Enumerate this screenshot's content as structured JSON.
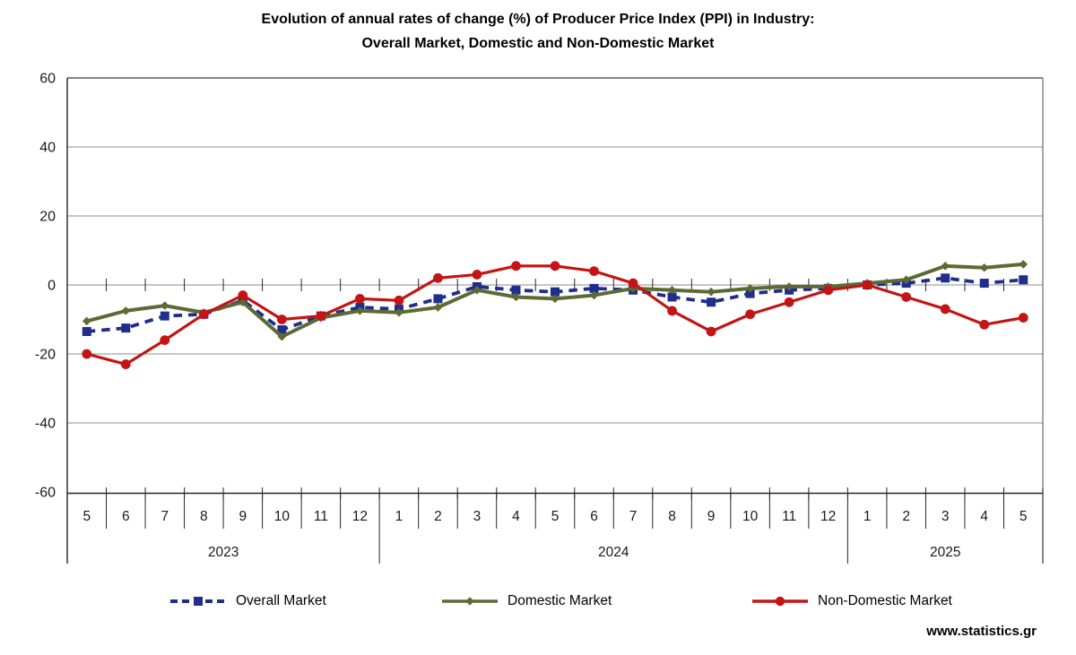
{
  "title": {
    "line1": "Evolution of annual rates of change (%) of Producer Price Index (PPI) in Industry:",
    "line2": "Overall Market, Domestic and Non-Domestic Market"
  },
  "watermark": "www.statistics.gr",
  "colors": {
    "grid": "#8c8c8c",
    "axis": "#262626",
    "plot_border_top": "#595959",
    "plot_border_right": "#6e6e6e",
    "label_text": "#1a1a1a",
    "overall": "#1f2d8c",
    "domestic": "#5b6b33",
    "non_domestic": "#c41414"
  },
  "chart_data": {
    "type": "line",
    "title": "Evolution of annual rates of change (%) of Producer Price Index (PPI) in Industry: Overall Market, Domestic and Non-Domestic Market",
    "xlabel": "",
    "ylabel": "",
    "ylim": [
      -60,
      60
    ],
    "yticks": [
      60,
      40,
      20,
      0,
      -20,
      -40,
      -60
    ],
    "grid": "horizontal",
    "legend_position": "bottom",
    "categories": [
      "2023-05",
      "2023-06",
      "2023-07",
      "2023-08",
      "2023-09",
      "2023-10",
      "2023-11",
      "2023-12",
      "2024-01",
      "2024-02",
      "2024-03",
      "2024-04",
      "2024-05",
      "2024-06",
      "2024-07",
      "2024-08",
      "2024-09",
      "2024-10",
      "2024-11",
      "2024-12",
      "2025-01",
      "2025-02",
      "2025-03",
      "2025-04",
      "2025-05"
    ],
    "month_labels": [
      "5",
      "6",
      "7",
      "8",
      "9",
      "10",
      "11",
      "12",
      "1",
      "2",
      "3",
      "4",
      "5",
      "6",
      "7",
      "8",
      "9",
      "10",
      "11",
      "12",
      "1",
      "2",
      "3",
      "4",
      "5"
    ],
    "year_groups": [
      {
        "label": "2023",
        "months": 8
      },
      {
        "label": "2024",
        "months": 12
      },
      {
        "label": "2025",
        "months": 5
      }
    ],
    "series": [
      {
        "name": "Overall Market",
        "color": "#1f2d8c",
        "line_style": "dashed",
        "marker": "square",
        "values": [
          -13.5,
          -12.5,
          -9,
          -8.5,
          -4.5,
          -13,
          -9,
          -6.5,
          -7,
          -4,
          -0.5,
          -1.5,
          -2,
          -1,
          -1.5,
          -3.5,
          -5,
          -2.5,
          -1.5,
          -1,
          0,
          0.5,
          2,
          0.5,
          1.5
        ]
      },
      {
        "name": "Domestic Market",
        "color": "#5b6b33",
        "line_style": "solid",
        "marker": "diamond",
        "values": [
          -10.5,
          -7.5,
          -6,
          -8,
          -5,
          -15,
          -9.5,
          -7.5,
          -8,
          -6.5,
          -1.5,
          -3.5,
          -4,
          -3,
          -1,
          -1.5,
          -2,
          -1,
          -0.5,
          -0.5,
          0.5,
          1.5,
          5.5,
          5,
          6
        ]
      },
      {
        "name": "Non-Domestic Market",
        "color": "#c41414",
        "line_style": "solid",
        "marker": "circle",
        "values": [
          -20,
          -23,
          -16,
          -8.5,
          -3,
          -10,
          -9,
          -4,
          -4.5,
          2,
          3,
          5.5,
          5.5,
          4,
          0.5,
          -7.5,
          -13.5,
          -8.5,
          -5,
          -1.5,
          0,
          -3.5,
          -7,
          -11.5,
          -9.5
        ]
      }
    ]
  }
}
